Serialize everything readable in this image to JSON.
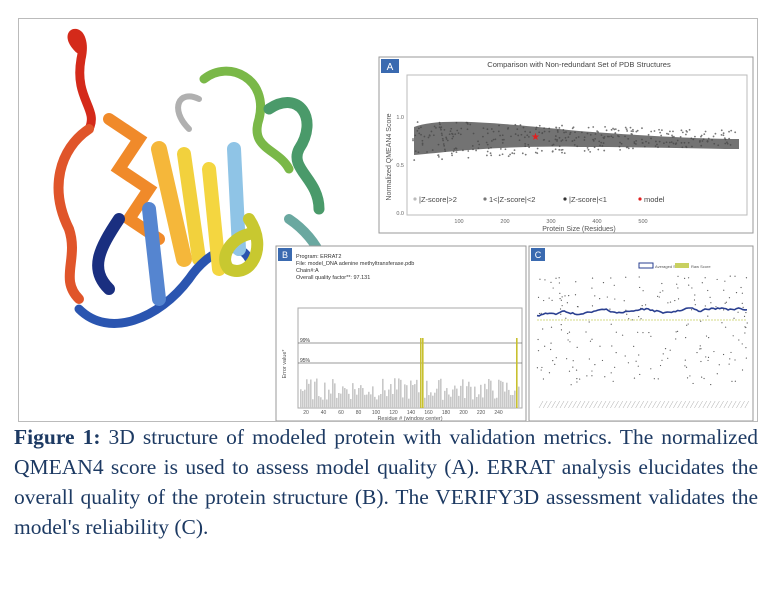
{
  "panel_a": {
    "label": "A",
    "title": "Comparison with Non-redundant Set of PDB Structures",
    "y_label": "Normalized QMEAN4 Score",
    "x_label": "Protein Size (Residues)",
    "x_ticks": [
      "100",
      "200",
      "300",
      "400",
      "500"
    ],
    "y_ticks": [
      "0.0",
      "0.5",
      "1.0"
    ],
    "legend": [
      "|Z-score|>2",
      "1<|Z-score|<2",
      "|Z-score|<1",
      "model"
    ]
  },
  "panel_b": {
    "label": "B",
    "info": [
      "Program: ERRAT2",
      "File: model_DNA adenine methyltransferase.pdb",
      "Chain#:A",
      "Overall quality factor**: 97.131"
    ],
    "y_label": "Error value*",
    "thresholds": [
      "99%",
      "95%"
    ],
    "x_label": "Residue # (window center)",
    "x_ticks": [
      "20",
      "40",
      "60",
      "80",
      "100",
      "120",
      "140",
      "160",
      "180",
      "200",
      "220",
      "240"
    ]
  },
  "panel_c": {
    "label": "C",
    "legend": [
      "Averaged Score",
      "Raw Score"
    ]
  },
  "caption": {
    "label": "Figure 1:",
    "text": "3D structure of modeled protein with validation metrics. The normalized QMEAN4 score is used to assess model quality (A). ERRAT analysis elucidates the overall quality of the protein structure (B). The VERIFY3D assessment validates the model's reliability (C)."
  }
}
